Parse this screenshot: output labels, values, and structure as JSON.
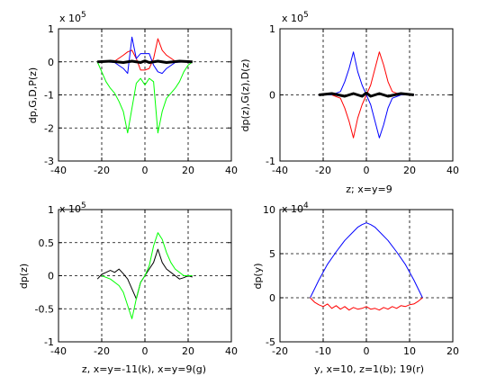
{
  "chart_data": [
    {
      "type": "line",
      "xlabel": "",
      "ylabel": "dp,G,D,P(z)",
      "exponent": {
        "base": "x 10",
        "power": "5"
      },
      "xlim": [
        -40,
        40
      ],
      "ylim": [
        -3,
        1
      ],
      "xticks": [
        -40,
        -20,
        0,
        20,
        40
      ],
      "yticks": [
        -3,
        -2,
        -1,
        0,
        1
      ],
      "grid": true,
      "series": [
        {
          "color": "#ff0000",
          "width": 1,
          "x": [
            -22,
            -18,
            -14,
            -10,
            -8,
            -6,
            -4,
            -2,
            0,
            2,
            4,
            6,
            8,
            10,
            14,
            18,
            22
          ],
          "y": [
            0,
            0,
            0.02,
            0.2,
            0.3,
            0.35,
            0.1,
            -0.25,
            -0.25,
            -0.2,
            0.1,
            0.7,
            0.35,
            0.2,
            0.02,
            0,
            0
          ]
        },
        {
          "color": "#0000ff",
          "width": 1,
          "x": [
            -22,
            -18,
            -14,
            -10,
            -8,
            -6,
            -4,
            -2,
            0,
            2,
            4,
            6,
            8,
            10,
            14,
            18,
            22
          ],
          "y": [
            0,
            0,
            -0.02,
            -0.2,
            -0.35,
            0.75,
            0.1,
            0.25,
            0.25,
            0.25,
            -0.1,
            -0.3,
            -0.35,
            -0.2,
            -0.02,
            0,
            0
          ]
        },
        {
          "color": "#00ff00",
          "width": 1,
          "x": [
            -22,
            -20,
            -18,
            -16,
            -14,
            -12,
            -10,
            -8,
            -6,
            -4,
            -2,
            0,
            2,
            4,
            6,
            8,
            10,
            12,
            14,
            16,
            18,
            20,
            22
          ],
          "y": [
            0,
            -0.3,
            -0.6,
            -0.8,
            -0.95,
            -1.2,
            -1.5,
            -2.15,
            -1.4,
            -0.65,
            -0.5,
            -0.7,
            -0.5,
            -0.6,
            -2.15,
            -1.5,
            -1.1,
            -0.95,
            -0.8,
            -0.6,
            -0.3,
            -0.1,
            0
          ]
        },
        {
          "color": "#000000",
          "width": 3,
          "x": [
            -22,
            -16,
            -10,
            -6,
            -2,
            0,
            2,
            6,
            10,
            16,
            22
          ],
          "y": [
            0,
            0.02,
            -0.02,
            0.02,
            -0.02,
            0.03,
            -0.02,
            0.02,
            -0.02,
            0.02,
            0
          ]
        }
      ]
    },
    {
      "type": "line",
      "xlabel": "z; x=y=9",
      "ylabel": "dp(z),G(z),D(z)",
      "exponent": {
        "base": "x 10",
        "power": "5"
      },
      "xlim": [
        -40,
        40
      ],
      "ylim": [
        -1,
        1
      ],
      "xticks": [
        -40,
        -20,
        0,
        20,
        40
      ],
      "yticks": [
        -1,
        0,
        1
      ],
      "grid": true,
      "series": [
        {
          "color": "#ff0000",
          "width": 1,
          "x": [
            -22,
            -16,
            -12,
            -10,
            -8,
            -6,
            -4,
            -2,
            0,
            2,
            4,
            6,
            8,
            10,
            12,
            16,
            22
          ],
          "y": [
            0,
            0,
            -0.05,
            -0.2,
            -0.4,
            -0.65,
            -0.35,
            -0.15,
            0,
            0.15,
            0.4,
            0.65,
            0.45,
            0.2,
            0.05,
            0,
            0
          ]
        },
        {
          "color": "#0000ff",
          "width": 1,
          "x": [
            -22,
            -16,
            -12,
            -10,
            -8,
            -6,
            -4,
            -2,
            0,
            2,
            4,
            6,
            8,
            10,
            12,
            16,
            22
          ],
          "y": [
            0,
            0,
            0.05,
            0.2,
            0.4,
            0.65,
            0.35,
            0.15,
            0,
            -0.15,
            -0.4,
            -0.65,
            -0.45,
            -0.2,
            -0.05,
            0,
            0
          ]
        },
        {
          "color": "#000000",
          "width": 3,
          "x": [
            -22,
            -16,
            -10,
            -6,
            -2,
            0,
            2,
            6,
            10,
            16,
            22
          ],
          "y": [
            0,
            0.02,
            -0.02,
            0.02,
            -0.02,
            0.03,
            -0.02,
            0.02,
            -0.02,
            0.02,
            0
          ]
        }
      ]
    },
    {
      "type": "line",
      "xlabel": "z, x=y=-11(k), x=y=9(g)",
      "ylabel": "dp(z)",
      "exponent": {
        "base": "x 10",
        "power": "5"
      },
      "xlim": [
        -40,
        40
      ],
      "ylim": [
        -1,
        1
      ],
      "xticks": [
        -40,
        -20,
        0,
        20,
        40
      ],
      "yticks": [
        -1,
        -0.5,
        0,
        0.5,
        1
      ],
      "grid": true,
      "series": [
        {
          "color": "#000000",
          "width": 1,
          "x": [
            -22,
            -20,
            -18,
            -16,
            -14,
            -12,
            -10,
            -8,
            -6,
            -4,
            -2,
            0,
            2,
            4,
            6,
            8,
            10,
            12,
            14,
            16,
            18,
            20,
            22
          ],
          "y": [
            -0.05,
            0.02,
            0.05,
            0.08,
            0.05,
            0.1,
            0.03,
            -0.05,
            -0.2,
            -0.35,
            -0.1,
            0,
            0.1,
            0.2,
            0.4,
            0.2,
            0.1,
            0.05,
            0,
            -0.05,
            -0.03,
            0,
            -0.02
          ]
        },
        {
          "color": "#00ff00",
          "width": 1,
          "x": [
            -20,
            -16,
            -12,
            -10,
            -8,
            -6,
            -4,
            -2,
            0,
            2,
            4,
            6,
            8,
            10,
            12,
            14,
            18,
            22
          ],
          "y": [
            0,
            -0.05,
            -0.15,
            -0.25,
            -0.45,
            -0.65,
            -0.35,
            -0.1,
            0,
            0.15,
            0.45,
            0.65,
            0.55,
            0.35,
            0.2,
            0.1,
            0,
            0
          ]
        }
      ]
    },
    {
      "type": "line",
      "xlabel": "y, x=10, z=1(b); 19(r)",
      "ylabel": "dp(y)",
      "exponent": {
        "base": "x 10",
        "power": "4"
      },
      "xlim": [
        -20,
        20
      ],
      "ylim": [
        -5,
        10
      ],
      "xticks": [
        -20,
        -10,
        0,
        10,
        20
      ],
      "yticks": [
        -5,
        0,
        5,
        10
      ],
      "grid": true,
      "series": [
        {
          "color": "#0000ff",
          "width": 1,
          "x": [
            -13,
            -11,
            -9,
            -7,
            -5,
            -3,
            -2,
            -1,
            0,
            1,
            2,
            3,
            5,
            7,
            9,
            11,
            13
          ],
          "y": [
            0,
            2.0,
            3.8,
            5.2,
            6.5,
            7.5,
            8.0,
            8.3,
            8.5,
            8.3,
            8.0,
            7.5,
            6.5,
            5.2,
            3.8,
            2.0,
            0
          ]
        },
        {
          "color": "#ff0000",
          "width": 1,
          "x": [
            -13,
            -12,
            -11,
            -10,
            -9,
            -8,
            -7,
            -6,
            -5,
            -4,
            -3,
            -2,
            -1,
            0,
            1,
            2,
            3,
            4,
            5,
            6,
            7,
            8,
            9,
            10,
            11,
            12,
            13
          ],
          "y": [
            0,
            -0.5,
            -0.8,
            -1.0,
            -0.7,
            -1.2,
            -0.9,
            -1.3,
            -1.0,
            -1.4,
            -1.1,
            -1.3,
            -1.2,
            -1.0,
            -1.3,
            -1.2,
            -1.4,
            -1.1,
            -1.3,
            -1.0,
            -1.2,
            -0.9,
            -1.0,
            -0.8,
            -0.7,
            -0.4,
            0
          ]
        }
      ]
    }
  ]
}
